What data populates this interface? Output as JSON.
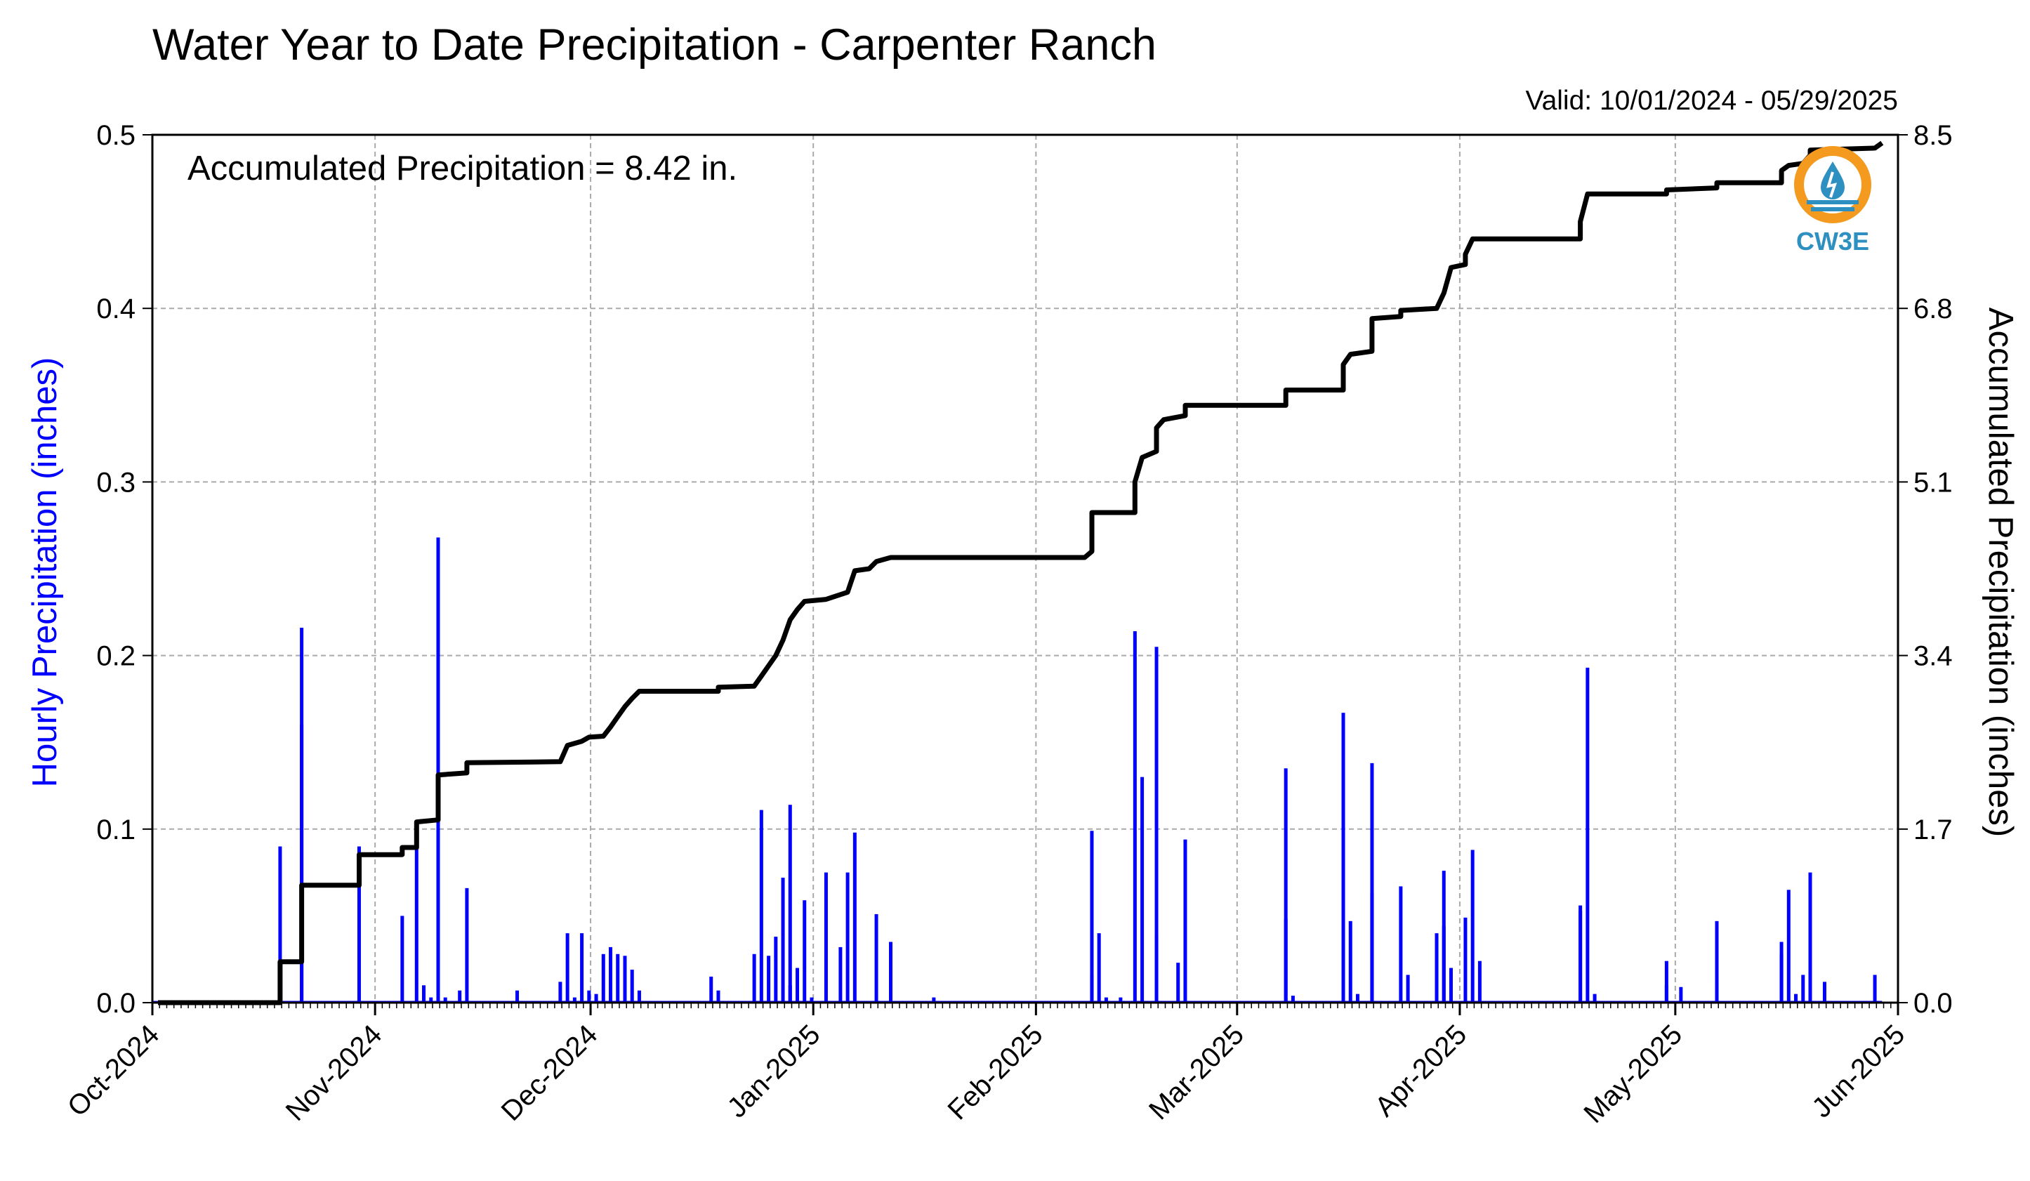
{
  "chart_data": {
    "type": "bar+line",
    "title": "Water Year to Date Precipitation - Carpenter Ranch",
    "subtitle": "Valid: 10/01/2024 - 05/29/2025",
    "annotation": "Accumulated Precipitation = 8.42 in.",
    "left_axis": {
      "label": "Hourly Precipitation (inches)",
      "ylim": [
        0,
        0.5
      ],
      "ticks": [
        "0.0",
        "0.1",
        "0.2",
        "0.3",
        "0.4",
        "0.5"
      ],
      "color": "#0000ff"
    },
    "right_axis": {
      "label": "Accumulated Precipitation (inches)",
      "ylim": [
        0,
        8.5
      ],
      "ticks": [
        "0.0",
        "1.7",
        "3.4",
        "5.1",
        "6.8",
        "8.5"
      ]
    },
    "x_axis": {
      "start": "2024-10-01",
      "end": "2025-06-01",
      "tick_labels": [
        "Oct-2024",
        "Nov-2024",
        "Dec-2024",
        "Jan-2025",
        "Feb-2025",
        "Mar-2025",
        "Apr-2025",
        "May-2025",
        "Jun-2025"
      ],
      "tick_dates": [
        "2024-10-01",
        "2024-11-01",
        "2024-12-01",
        "2025-01-01",
        "2025-02-01",
        "2025-03-01",
        "2025-04-01",
        "2025-05-01",
        "2025-06-01"
      ]
    },
    "grid": true,
    "series": [
      {
        "kind": "bar",
        "color": "#0000ff",
        "points": [
          [
            "2024-10-18",
            0.09
          ],
          [
            "2024-10-18",
            0.02
          ],
          [
            "2024-10-21",
            0.216
          ],
          [
            "2024-10-21",
            0.16
          ],
          [
            "2024-10-29",
            0.09
          ],
          [
            "2024-11-04",
            0.05
          ],
          [
            "2024-11-06",
            0.09
          ],
          [
            "2024-11-07",
            0.01
          ],
          [
            "2024-11-08",
            0.003
          ],
          [
            "2024-11-09",
            0.268
          ],
          [
            "2024-11-09",
            0.1
          ],
          [
            "2024-11-10",
            0.003
          ],
          [
            "2024-11-12",
            0.007
          ],
          [
            "2024-11-13",
            0.066
          ],
          [
            "2024-11-20",
            0.007
          ],
          [
            "2024-11-26",
            0.012
          ],
          [
            "2024-11-27",
            0.04
          ],
          [
            "2024-11-28",
            0.003
          ],
          [
            "2024-11-29",
            0.04
          ],
          [
            "2024-11-30",
            0.007
          ],
          [
            "2024-12-01",
            0.003
          ],
          [
            "2024-12-01",
            0.005
          ],
          [
            "2024-12-02",
            0.028
          ],
          [
            "2024-12-03",
            0.032
          ],
          [
            "2024-12-04",
            0.028
          ],
          [
            "2024-12-05",
            0.027
          ],
          [
            "2024-12-06",
            0.019
          ],
          [
            "2024-12-07",
            0.007
          ],
          [
            "2024-12-17",
            0.015
          ],
          [
            "2024-12-18",
            0.007
          ],
          [
            "2024-12-23",
            0.028
          ],
          [
            "2024-12-24",
            0.111
          ],
          [
            "2024-12-25",
            0.027
          ],
          [
            "2024-12-26",
            0.038
          ],
          [
            "2024-12-27",
            0.072
          ],
          [
            "2024-12-28",
            0.114
          ],
          [
            "2024-12-28",
            0.01
          ],
          [
            "2024-12-29",
            0.02
          ],
          [
            "2024-12-30",
            0.059
          ],
          [
            "2024-12-31",
            0.003
          ],
          [
            "2025-01-02",
            0.075
          ],
          [
            "2025-01-04",
            0.032
          ],
          [
            "2025-01-05",
            0.075
          ],
          [
            "2025-01-06",
            0.098
          ],
          [
            "2025-01-09",
            0.051
          ],
          [
            "2025-01-11",
            0.035
          ],
          [
            "2025-01-17",
            0.003
          ],
          [
            "2025-02-08",
            0.016
          ],
          [
            "2025-02-08",
            0.099
          ],
          [
            "2025-02-09",
            0.04
          ],
          [
            "2025-02-10",
            0.003
          ],
          [
            "2025-02-12",
            0.003
          ],
          [
            "2025-02-14",
            0.214
          ],
          [
            "2025-02-15",
            0.13
          ],
          [
            "2025-02-17",
            0.205
          ],
          [
            "2025-02-17",
            0.039
          ],
          [
            "2025-02-20",
            0.023
          ],
          [
            "2025-02-21",
            0.094
          ],
          [
            "2025-03-07",
            0.135
          ],
          [
            "2025-03-07",
            0.048
          ],
          [
            "2025-03-08",
            0.004
          ],
          [
            "2025-03-15",
            0.167
          ],
          [
            "2025-03-16",
            0.047
          ],
          [
            "2025-03-17",
            0.005
          ],
          [
            "2025-03-19",
            0.138
          ],
          [
            "2025-03-19",
            0.063
          ],
          [
            "2025-03-23",
            0.067
          ],
          [
            "2025-03-24",
            0.016
          ],
          [
            "2025-03-28",
            0.04
          ],
          [
            "2025-03-29",
            0.044
          ],
          [
            "2025-03-29",
            0.076
          ],
          [
            "2025-03-30",
            0.02
          ],
          [
            "2025-04-01",
            0.049
          ],
          [
            "2025-04-02",
            0.088
          ],
          [
            "2025-04-03",
            0.024
          ],
          [
            "2025-04-17",
            0.053
          ],
          [
            "2025-04-17",
            0.056
          ],
          [
            "2025-04-18",
            0.193
          ],
          [
            "2025-04-19",
            0.005
          ],
          [
            "2025-04-29",
            0.024
          ],
          [
            "2025-04-29",
            0.01
          ],
          [
            "2025-05-01",
            0.009
          ],
          [
            "2025-05-06",
            0.047
          ],
          [
            "2025-05-06",
            0.013
          ],
          [
            "2025-05-15",
            0.035
          ],
          [
            "2025-05-15",
            0.028
          ],
          [
            "2025-05-16",
            0.065
          ],
          [
            "2025-05-17",
            0.005
          ],
          [
            "2025-05-18",
            0.016
          ],
          [
            "2025-05-19",
            0.075
          ],
          [
            "2025-05-19",
            0.028
          ],
          [
            "2025-05-21",
            0.012
          ],
          [
            "2025-05-28",
            0.016
          ]
        ]
      },
      {
        "kind": "line",
        "color": "#000000",
        "axis": "right",
        "points": [
          [
            "2024-10-01",
            0.0
          ],
          [
            "2024-10-18",
            0.0
          ],
          [
            "2024-10-18",
            0.4
          ],
          [
            "2024-10-21",
            0.4
          ],
          [
            "2024-10-21",
            1.15
          ],
          [
            "2024-10-29",
            1.15
          ],
          [
            "2024-10-29",
            1.45
          ],
          [
            "2024-11-04",
            1.45
          ],
          [
            "2024-11-04",
            1.52
          ],
          [
            "2024-11-06",
            1.52
          ],
          [
            "2024-11-06",
            1.77
          ],
          [
            "2024-11-09",
            1.79
          ],
          [
            "2024-11-09",
            2.23
          ],
          [
            "2024-11-13",
            2.25
          ],
          [
            "2024-11-13",
            2.35
          ],
          [
            "2024-11-26",
            2.36
          ],
          [
            "2024-11-27",
            2.52
          ],
          [
            "2024-11-29",
            2.56
          ],
          [
            "2024-11-30",
            2.6
          ],
          [
            "2024-12-02",
            2.61
          ],
          [
            "2024-12-03",
            2.7
          ],
          [
            "2024-12-04",
            2.8
          ],
          [
            "2024-12-05",
            2.9
          ],
          [
            "2024-12-06",
            2.98
          ],
          [
            "2024-12-07",
            3.05
          ],
          [
            "2024-12-18",
            3.05
          ],
          [
            "2024-12-18",
            3.09
          ],
          [
            "2024-12-23",
            3.1
          ],
          [
            "2024-12-24",
            3.2
          ],
          [
            "2024-12-25",
            3.3
          ],
          [
            "2024-12-26",
            3.4
          ],
          [
            "2024-12-27",
            3.55
          ],
          [
            "2024-12-28",
            3.75
          ],
          [
            "2024-12-29",
            3.85
          ],
          [
            "2024-12-30",
            3.93
          ],
          [
            "2025-01-02",
            3.95
          ],
          [
            "2025-01-05",
            4.02
          ],
          [
            "2025-01-06",
            4.23
          ],
          [
            "2025-01-08",
            4.25
          ],
          [
            "2025-01-09",
            4.32
          ],
          [
            "2025-01-11",
            4.36
          ],
          [
            "2025-01-17",
            4.36
          ],
          [
            "2025-02-07",
            4.36
          ],
          [
            "2025-02-08",
            4.42
          ],
          [
            "2025-02-08",
            4.8
          ],
          [
            "2025-02-14",
            4.8
          ],
          [
            "2025-02-14",
            5.1
          ],
          [
            "2025-02-15",
            5.34
          ],
          [
            "2025-02-17",
            5.4
          ],
          [
            "2025-02-17",
            5.63
          ],
          [
            "2025-02-18",
            5.71
          ],
          [
            "2025-02-21",
            5.75
          ],
          [
            "2025-02-21",
            5.85
          ],
          [
            "2025-03-07",
            5.85
          ],
          [
            "2025-03-07",
            6.0
          ],
          [
            "2025-03-15",
            6.0
          ],
          [
            "2025-03-15",
            6.25
          ],
          [
            "2025-03-16",
            6.35
          ],
          [
            "2025-03-19",
            6.38
          ],
          [
            "2025-03-19",
            6.7
          ],
          [
            "2025-03-23",
            6.72
          ],
          [
            "2025-03-23",
            6.78
          ],
          [
            "2025-03-28",
            6.8
          ],
          [
            "2025-03-29",
            6.95
          ],
          [
            "2025-03-30",
            7.2
          ],
          [
            "2025-04-01",
            7.23
          ],
          [
            "2025-04-01",
            7.33
          ],
          [
            "2025-04-02",
            7.48
          ],
          [
            "2025-04-17",
            7.48
          ],
          [
            "2025-04-17",
            7.65
          ],
          [
            "2025-04-18",
            7.92
          ],
          [
            "2025-04-29",
            7.92
          ],
          [
            "2025-04-29",
            7.96
          ],
          [
            "2025-05-06",
            7.98
          ],
          [
            "2025-05-06",
            8.03
          ],
          [
            "2025-05-15",
            8.03
          ],
          [
            "2025-05-15",
            8.15
          ],
          [
            "2025-05-16",
            8.2
          ],
          [
            "2025-05-18",
            8.22
          ],
          [
            "2025-05-19",
            8.3
          ],
          [
            "2025-05-19",
            8.35
          ],
          [
            "2025-05-28",
            8.37
          ],
          [
            "2025-05-29",
            8.42
          ]
        ]
      }
    ]
  },
  "logo": {
    "text": "CW3E",
    "ring_color": "#f39a1f",
    "drop_color": "#2e8fc1",
    "wave_color": "#2e8fc1"
  }
}
